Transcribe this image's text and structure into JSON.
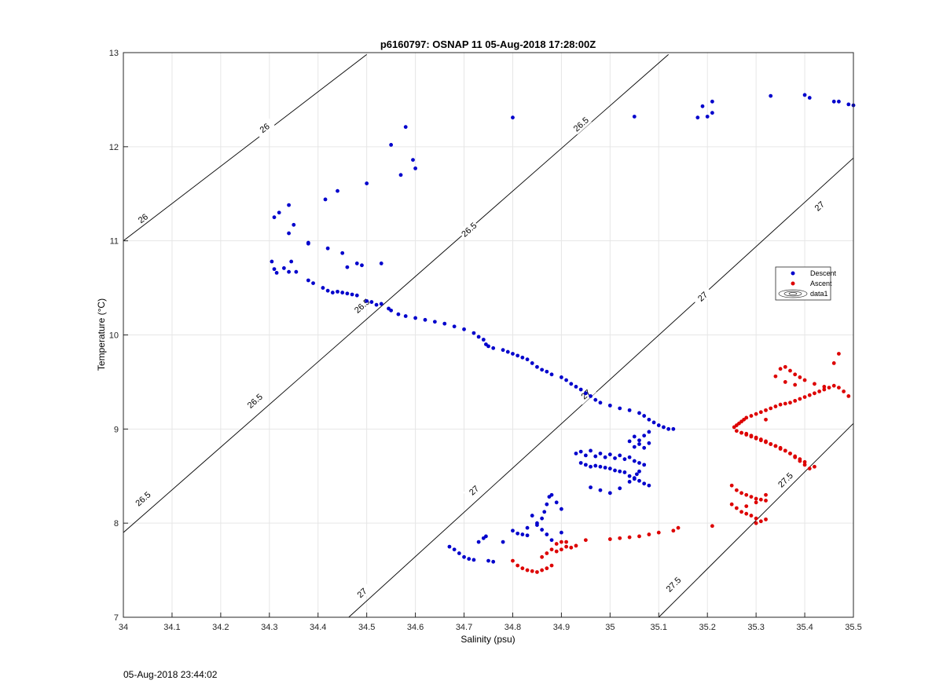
{
  "footer_timestamp": "05-Aug-2018 23:44:02",
  "chart_data": {
    "type": "scatter",
    "title": "p6160797: OSNAP 11 05-Aug-2018 17:28:00Z",
    "xlabel": "Salinity (psu)",
    "ylabel": "Temperature (°C)",
    "xlim": [
      34,
      35.5
    ],
    "ylim": [
      7,
      13
    ],
    "xticks": [
      "34",
      "34.1",
      "34.2",
      "34.3",
      "34.4",
      "34.5",
      "34.6",
      "34.7",
      "34.8",
      "34.9",
      "35",
      "35.1",
      "35.2",
      "35.3",
      "35.4",
      "35.5"
    ],
    "yticks": [
      "7",
      "8",
      "9",
      "10",
      "11",
      "12",
      "13"
    ],
    "grid": true,
    "legend": {
      "position": "right",
      "entries": [
        {
          "label": "Descent",
          "color": "#0000cc",
          "marker": "dot"
        },
        {
          "label": "Ascent",
          "color": "#dd0000",
          "marker": "dot"
        },
        {
          "label": "data1",
          "marker": "contour"
        }
      ]
    },
    "contours": [
      {
        "level": "26",
        "x": [
          34.0,
          34.5
        ],
        "y": [
          11.0,
          12.98
        ]
      },
      {
        "level": "26.5",
        "x": [
          34.0,
          35.12
        ],
        "y": [
          7.9,
          12.98
        ]
      },
      {
        "level": "27",
        "x": [
          34.463,
          35.5
        ],
        "y": [
          7.0,
          11.88
        ]
      },
      {
        "level": "27.5",
        "x": [
          35.1,
          35.5
        ],
        "y": [
          7.0,
          9.06
        ]
      }
    ],
    "contour_labels": [
      {
        "text": "26",
        "x": 34.29,
        "y": 12.2
      },
      {
        "text": "26",
        "x": 34.04,
        "y": 11.24
      },
      {
        "text": "26.5",
        "x": 34.94,
        "y": 12.24
      },
      {
        "text": "26.5",
        "x": 34.71,
        "y": 11.12
      },
      {
        "text": "26.5",
        "x": 34.49,
        "y": 10.31
      },
      {
        "text": "26.5",
        "x": 34.27,
        "y": 9.3
      },
      {
        "text": "26.5",
        "x": 34.04,
        "y": 8.26
      },
      {
        "text": "27",
        "x": 35.43,
        "y": 11.37
      },
      {
        "text": "27",
        "x": 35.19,
        "y": 10.41
      },
      {
        "text": "27",
        "x": 34.95,
        "y": 9.37
      },
      {
        "text": "27",
        "x": 34.72,
        "y": 8.35
      },
      {
        "text": "27",
        "x": 34.49,
        "y": 7.26
      },
      {
        "text": "27.5",
        "x": 35.36,
        "y": 8.46
      },
      {
        "text": "27.5",
        "x": 35.13,
        "y": 7.35
      }
    ],
    "series": [
      {
        "name": "Descent",
        "color": "#0000cc",
        "x": [
          34.31,
          34.32,
          34.34,
          34.34,
          34.35,
          34.38,
          34.415,
          34.44,
          34.5,
          34.55,
          34.57,
          34.58,
          34.595,
          34.6,
          34.8,
          35.05,
          35.18,
          35.19,
          35.2,
          35.21,
          35.21,
          35.33,
          35.4,
          35.41,
          35.46,
          35.47,
          35.49,
          35.5,
          34.38,
          34.42,
          34.45,
          34.46,
          34.48,
          34.49,
          34.53,
          34.305,
          34.31,
          34.315,
          34.33,
          34.34,
          34.345,
          34.355,
          34.38,
          34.39,
          34.41,
          34.42,
          34.43,
          34.44,
          34.45,
          34.46,
          34.47,
          34.48,
          34.5,
          34.51,
          34.52,
          34.53,
          34.545,
          34.55,
          34.565,
          34.58,
          34.6,
          34.62,
          34.64,
          34.66,
          34.68,
          34.7,
          34.72,
          34.73,
          34.74,
          34.745,
          34.75,
          34.76,
          34.78,
          34.79,
          34.8,
          34.81,
          34.82,
          34.83,
          34.84,
          34.85,
          34.86,
          34.87,
          34.88,
          34.9,
          34.91,
          34.92,
          34.93,
          34.94,
          34.95,
          34.96,
          34.97,
          34.98,
          35.0,
          35.02,
          35.04,
          35.06,
          35.07,
          35.08,
          35.09,
          35.1,
          35.11,
          35.12,
          35.13,
          35.08,
          35.07,
          35.06,
          35.05,
          35.04,
          35.06,
          35.05,
          35.07,
          35.08,
          34.93,
          34.94,
          34.95,
          34.96,
          34.97,
          34.98,
          34.99,
          35.0,
          35.01,
          35.02,
          35.03,
          35.04,
          35.05,
          35.06,
          35.07,
          34.94,
          34.95,
          34.96,
          34.97,
          34.98,
          34.99,
          35.0,
          35.01,
          35.02,
          35.03,
          35.04,
          35.05,
          35.06,
          35.07,
          35.08,
          34.96,
          34.98,
          35.0,
          35.02,
          35.04,
          35.05,
          35.055,
          35.06,
          34.83,
          34.85,
          34.86,
          34.865,
          34.87,
          34.875,
          34.88,
          34.89,
          34.9,
          34.84,
          34.85,
          34.86,
          34.87,
          34.88,
          34.67,
          34.68,
          34.69,
          34.7,
          34.71,
          34.72,
          34.73,
          34.74,
          34.745,
          34.75,
          34.76,
          34.78,
          34.8,
          34.81,
          34.82,
          34.83,
          34.9
        ],
        "y": [
          11.25,
          11.3,
          11.38,
          11.08,
          11.17,
          10.98,
          11.44,
          11.53,
          11.61,
          12.02,
          11.7,
          12.21,
          11.86,
          11.77,
          12.31,
          12.32,
          12.31,
          12.43,
          12.32,
          12.36,
          12.48,
          12.54,
          12.55,
          12.52,
          12.48,
          12.48,
          12.45,
          12.44,
          10.97,
          10.92,
          10.87,
          10.72,
          10.76,
          10.74,
          10.76,
          10.78,
          10.7,
          10.66,
          10.71,
          10.67,
          10.78,
          10.67,
          10.58,
          10.55,
          10.5,
          10.47,
          10.45,
          10.46,
          10.45,
          10.44,
          10.43,
          10.42,
          10.36,
          10.35,
          10.32,
          10.33,
          10.28,
          10.26,
          10.22,
          10.2,
          10.18,
          10.16,
          10.14,
          10.12,
          10.09,
          10.06,
          10.02,
          9.98,
          9.95,
          9.9,
          9.88,
          9.86,
          9.84,
          9.82,
          9.8,
          9.78,
          9.76,
          9.74,
          9.7,
          9.66,
          9.63,
          9.61,
          9.58,
          9.55,
          9.52,
          9.48,
          9.45,
          9.42,
          9.38,
          9.35,
          9.31,
          9.28,
          9.25,
          9.22,
          9.2,
          9.17,
          9.14,
          9.1,
          9.07,
          9.04,
          9.02,
          9.0,
          9.0,
          8.97,
          8.93,
          8.88,
          8.92,
          8.87,
          8.84,
          8.81,
          8.8,
          8.85,
          8.74,
          8.76,
          8.72,
          8.77,
          8.71,
          8.74,
          8.7,
          8.73,
          8.69,
          8.72,
          8.68,
          8.7,
          8.66,
          8.64,
          8.62,
          8.64,
          8.62,
          8.6,
          8.61,
          8.6,
          8.59,
          8.58,
          8.56,
          8.55,
          8.54,
          8.5,
          8.47,
          8.45,
          8.42,
          8.4,
          8.38,
          8.35,
          8.32,
          8.37,
          8.44,
          8.48,
          8.52,
          8.55,
          7.95,
          7.98,
          8.05,
          8.12,
          8.2,
          8.28,
          8.3,
          8.22,
          8.15,
          8.08,
          8.0,
          7.93,
          7.88,
          7.82,
          7.75,
          7.72,
          7.68,
          7.64,
          7.62,
          7.61,
          7.8,
          7.84,
          7.86,
          7.6,
          7.59,
          7.8,
          7.92,
          7.89,
          7.88,
          7.87,
          7.9
        ]
      },
      {
        "name": "Ascent",
        "color": "#dd0000",
        "x": [
          34.8,
          34.81,
          34.82,
          34.83,
          34.84,
          34.85,
          34.86,
          34.87,
          34.88,
          34.89,
          34.9,
          34.91,
          34.92,
          34.93,
          34.86,
          34.87,
          34.88,
          34.89,
          34.9,
          34.91,
          34.95,
          35.0,
          35.02,
          35.04,
          35.06,
          35.08,
          35.1,
          35.13,
          35.14,
          35.21,
          35.25,
          35.26,
          35.27,
          35.28,
          35.29,
          35.3,
          35.31,
          35.32,
          35.25,
          35.26,
          35.27,
          35.28,
          35.29,
          35.3,
          35.3,
          35.31,
          35.32,
          35.28,
          35.3,
          35.32,
          35.255,
          35.26,
          35.265,
          35.27,
          35.275,
          35.28,
          35.29,
          35.3,
          35.31,
          35.32,
          35.33,
          35.34,
          35.35,
          35.36,
          35.37,
          35.38,
          35.39,
          35.4,
          35.41,
          35.42,
          35.43,
          35.44,
          35.45,
          35.46,
          35.47,
          35.48,
          35.49,
          35.27,
          35.28,
          35.29,
          35.3,
          35.31,
          35.32,
          35.33,
          35.34,
          35.35,
          35.36,
          35.37,
          35.38,
          35.39,
          35.4,
          35.41,
          35.26,
          35.27,
          35.28,
          35.29,
          35.3,
          35.31,
          35.32,
          35.33,
          35.34,
          35.35,
          35.36,
          35.37,
          35.38,
          35.39,
          35.4,
          35.42,
          35.35,
          35.36,
          35.37,
          35.38,
          35.39,
          35.4,
          35.42,
          35.44,
          35.46,
          35.47,
          35.34,
          35.36,
          35.38,
          35.32
        ],
        "y": [
          7.6,
          7.55,
          7.52,
          7.5,
          7.49,
          7.48,
          7.5,
          7.52,
          7.55,
          7.7,
          7.72,
          7.75,
          7.74,
          7.76,
          7.64,
          7.68,
          7.72,
          7.78,
          7.8,
          7.8,
          7.82,
          7.83,
          7.84,
          7.85,
          7.86,
          7.88,
          7.9,
          7.92,
          7.95,
          7.97,
          8.4,
          8.35,
          8.32,
          8.3,
          8.28,
          8.26,
          8.25,
          8.24,
          8.2,
          8.16,
          8.12,
          8.1,
          8.08,
          8.05,
          8.0,
          8.02,
          8.04,
          8.18,
          8.22,
          8.3,
          9.02,
          9.04,
          9.06,
          9.08,
          9.1,
          9.12,
          9.14,
          9.16,
          9.18,
          9.2,
          9.22,
          9.24,
          9.26,
          9.27,
          9.28,
          9.3,
          9.32,
          9.34,
          9.36,
          9.38,
          9.4,
          9.42,
          9.44,
          9.46,
          9.44,
          9.4,
          9.35,
          8.96,
          8.94,
          8.92,
          8.9,
          8.88,
          8.86,
          8.84,
          8.82,
          8.8,
          8.77,
          8.74,
          8.7,
          8.66,
          8.62,
          8.58,
          8.98,
          8.96,
          8.95,
          8.93,
          8.91,
          8.89,
          8.87,
          8.84,
          8.82,
          8.79,
          8.77,
          8.74,
          8.71,
          8.68,
          8.65,
          8.6,
          9.64,
          9.66,
          9.62,
          9.58,
          9.55,
          9.52,
          9.48,
          9.45,
          9.7,
          9.8,
          9.56,
          9.5,
          9.47,
          9.1
        ]
      }
    ]
  }
}
